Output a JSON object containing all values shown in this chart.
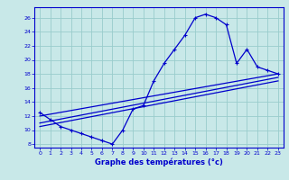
{
  "title": "Graphe des températures (°c)",
  "bg_color": "#c8e8e8",
  "line_color": "#0000cc",
  "grid_color": "#99cccc",
  "xlim": [
    -0.5,
    23.5
  ],
  "ylim": [
    7.5,
    27.5
  ],
  "xticks": [
    0,
    1,
    2,
    3,
    4,
    5,
    6,
    7,
    8,
    9,
    10,
    11,
    12,
    13,
    14,
    15,
    16,
    17,
    18,
    19,
    20,
    21,
    22,
    23
  ],
  "yticks": [
    8,
    10,
    12,
    14,
    16,
    18,
    20,
    22,
    24,
    26
  ],
  "curve_x": [
    0,
    1,
    2,
    3,
    4,
    5,
    6,
    7,
    8,
    9,
    10,
    11,
    12,
    13,
    14,
    15,
    16,
    17,
    18,
    19,
    20,
    21,
    22,
    23
  ],
  "curve_y": [
    12.5,
    11.5,
    10.5,
    10.0,
    9.5,
    9.0,
    8.5,
    8.0,
    10.0,
    13.0,
    13.5,
    17.0,
    19.5,
    21.5,
    23.5,
    26.0,
    26.5,
    26.0,
    25.0,
    19.5,
    21.5,
    19.0,
    18.5,
    18.0
  ],
  "line1_x": [
    0,
    23
  ],
  "line1_y": [
    12.0,
    18.0
  ],
  "line2_x": [
    0,
    23
  ],
  "line2_y": [
    11.0,
    17.5
  ],
  "line3_x": [
    0,
    23
  ],
  "line3_y": [
    10.5,
    17.0
  ]
}
